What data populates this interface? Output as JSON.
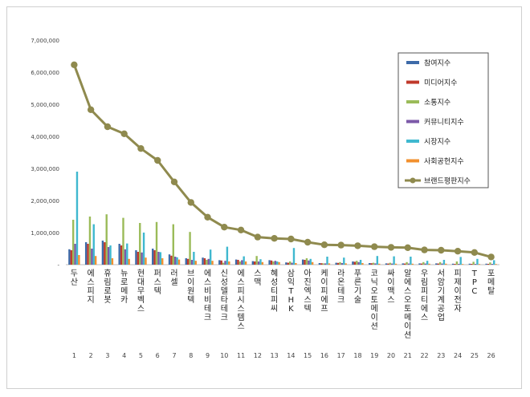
{
  "chart_data": {
    "type": "bar",
    "title": "",
    "xlabel": "",
    "ylabel": "",
    "ylim": [
      0,
      7000000
    ],
    "y_ticks": [
      "-",
      "1,000,000",
      "2,000,000",
      "3,000,000",
      "4,000,000",
      "5,000,000",
      "6,000,000",
      "7,000,000"
    ],
    "grid": false,
    "legend_position": "top-right",
    "categories": [
      "두산",
      "에스피지",
      "휴림로봇",
      "뉴로메카",
      "현대무벡스",
      "퍼스텍",
      "러셀",
      "브이원텍",
      "에스비비테크",
      "신성델타테크",
      "에스피시스템스",
      "스맥",
      "혜성티피씨",
      "삼익THK",
      "아진엑스텍",
      "케이피에프",
      "라온테크",
      "푸른기술",
      "코닉오토메이션",
      "싸이맥스",
      "알에스오토메이션",
      "우림피티에스",
      "서암기계공업",
      "피제이전자",
      "TPC",
      "포메탈"
    ],
    "rank_labels": [
      "1",
      "2",
      "3",
      "4",
      "5",
      "6",
      "7",
      "8",
      "9",
      "10",
      "11",
      "12",
      "13",
      "14",
      "15",
      "16",
      "17",
      "18",
      "19",
      "20",
      "21",
      "22",
      "23",
      "24",
      "25",
      "26"
    ],
    "series": [
      {
        "name": "참여지수",
        "color": "#3d6aa8",
        "kind": "bar",
        "values": [
          480000,
          700000,
          750000,
          650000,
          450000,
          500000,
          320000,
          200000,
          220000,
          140000,
          160000,
          110000,
          140000,
          70000,
          160000,
          50000,
          60000,
          100000,
          50000,
          40000,
          40000,
          40000,
          40000,
          30000,
          30000,
          30000
        ]
      },
      {
        "name": "미디어지수",
        "color": "#c0392b",
        "kind": "bar",
        "values": [
          450000,
          650000,
          700000,
          600000,
          400000,
          450000,
          280000,
          180000,
          200000,
          130000,
          150000,
          100000,
          130000,
          60000,
          150000,
          45000,
          55000,
          90000,
          45000,
          35000,
          35000,
          35000,
          35000,
          25000,
          25000,
          25000
        ]
      },
      {
        "name": "소통지수",
        "color": "#9bbb59",
        "kind": "bar",
        "values": [
          1400000,
          1500000,
          1570000,
          1460000,
          1300000,
          1330000,
          1260000,
          1020000,
          150000,
          60000,
          100000,
          270000,
          100000,
          100000,
          200000,
          40000,
          80000,
          120000,
          60000,
          60000,
          80000,
          80000,
          80000,
          100000,
          90000,
          70000
        ]
      },
      {
        "name": "커뮤니티지수",
        "color": "#7c59a8",
        "kind": "bar",
        "values": [
          650000,
          500000,
          550000,
          480000,
          380000,
          400000,
          250000,
          150000,
          180000,
          120000,
          140000,
          100000,
          120000,
          60000,
          130000,
          40000,
          50000,
          80000,
          40000,
          35000,
          35000,
          35000,
          35000,
          25000,
          25000,
          25000
        ]
      },
      {
        "name": "시장지수",
        "color": "#3fb8cf",
        "kind": "bar",
        "values": [
          2900000,
          1260000,
          600000,
          660000,
          1000000,
          390000,
          230000,
          400000,
          470000,
          560000,
          260000,
          170000,
          100000,
          520000,
          180000,
          250000,
          220000,
          150000,
          270000,
          260000,
          250000,
          120000,
          150000,
          240000,
          180000,
          140000
        ]
      },
      {
        "name": "사회공헌지수",
        "color": "#f2902e",
        "kind": "bar",
        "values": [
          300000,
          270000,
          200000,
          180000,
          220000,
          200000,
          160000,
          120000,
          120000,
          100000,
          100000,
          80000,
          80000,
          50000,
          80000,
          40000,
          40000,
          50000,
          30000,
          30000,
          30000,
          30000,
          30000,
          20000,
          20000,
          20000
        ]
      },
      {
        "name": "브랜드평판지수",
        "color": "#8f8a4e",
        "kind": "line",
        "values": [
          6230000,
          4830000,
          4300000,
          4080000,
          3620000,
          3250000,
          2580000,
          1940000,
          1480000,
          1170000,
          1080000,
          860000,
          820000,
          800000,
          700000,
          620000,
          610000,
          590000,
          560000,
          540000,
          530000,
          460000,
          450000,
          420000,
          380000,
          240000
        ]
      }
    ]
  }
}
